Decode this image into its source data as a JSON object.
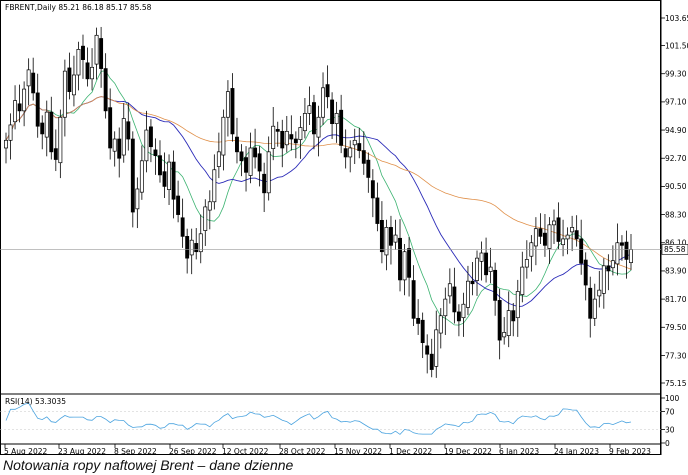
{
  "chart_data": {
    "type": "candlestick",
    "symbol_header": "FBRENT,Daily  85.21 86.18 85.17 85.58",
    "last_price": 85.58,
    "last_price_label": "85.58",
    "price_ticks": [
      75.15,
      77.3,
      79.5,
      81.7,
      83.9,
      86.1,
      88.3,
      90.5,
      92.7,
      94.9,
      97.1,
      99.3,
      101.5,
      103.65
    ],
    "price_tick_labels": [
      "75.15",
      "77.30",
      "79.50",
      "81.70",
      "83.90",
      "86.10",
      "88.30",
      "90.50",
      "92.70",
      "94.90",
      "97.10",
      "99.30",
      "101.50",
      "103.65"
    ],
    "x_labels": [
      "5 Aug 2022",
      "23 Aug 2022",
      "8 Sep 2022",
      "26 Sep 2022",
      "12 Oct 2022",
      "28 Oct 2022",
      "15 Nov 2022",
      "1 Dec 2022",
      "19 Dec 2022",
      "6 Jan 2023",
      "24 Jan 2023",
      "9 Feb 2023"
    ],
    "rsi": {
      "label": "RSI(14) 53.3035",
      "ticks": [
        0,
        30,
        70,
        100
      ],
      "tick_labels": [
        "0",
        "30",
        "70",
        "100"
      ]
    },
    "close_series": [
      94.1,
      95.3,
      97.2,
      96.4,
      98.1,
      99.6,
      97.8,
      95.2,
      94.6,
      96.3,
      93.2,
      92.6,
      95.9,
      99.5,
      97.9,
      99.2,
      101.2,
      100.4,
      98.9,
      99.8,
      102.3,
      99.7,
      96.4,
      93.5,
      94.2,
      92.7,
      95.8,
      94.2,
      88.5,
      90.3,
      92.5,
      94.9,
      93.6,
      92.9,
      91.4,
      90.5,
      92.4,
      89.5,
      88.3,
      86.6,
      84.9,
      86.3,
      85.4,
      86.8,
      88.9,
      89.3,
      91.8,
      93.2,
      95.9,
      97.9,
      94.6,
      93.2,
      92.5,
      91.6,
      93.5,
      92.8,
      91.7,
      90.0,
      93.2,
      95.2,
      94.8,
      93.5,
      94.8,
      94.2,
      93.9,
      95.1,
      96.2,
      96.8,
      94.6,
      95.9,
      98.2,
      97.5,
      95.4,
      96.2,
      93.7,
      92.8,
      93.5,
      94.1,
      93.3,
      92.3,
      91.2,
      89.6,
      87.6,
      85.4,
      87.3,
      85.9,
      86.7,
      83.2,
      85.4,
      83.4,
      80.2,
      79.8,
      78.3,
      77.4,
      76.2,
      79.3,
      80.4,
      81.7,
      82.9,
      80.7,
      80.0,
      81.3,
      83.1,
      82.9,
      84.9,
      85.3,
      83.6,
      84.2,
      81.6,
      78.5,
      79.1,
      80.8,
      80.0,
      82.3,
      84.2,
      84.8,
      86.1,
      87.2,
      86.6,
      85.9,
      87.5,
      87.8,
      86.2,
      86.4,
      86.7,
      87.3,
      86.4,
      84.5,
      82.8,
      80.2,
      81.7,
      82.4,
      84.3,
      83.9,
      84.7,
      86.1,
      85.9,
      84.8,
      85.58
    ],
    "ma_short": {
      "color": "#3cb371"
    },
    "ma_mid": {
      "color": "#2b2bb8"
    },
    "ma_long": {
      "color": "#e0904a"
    }
  },
  "caption": "Notowania ropy naftowej Brent – dane dzienne"
}
